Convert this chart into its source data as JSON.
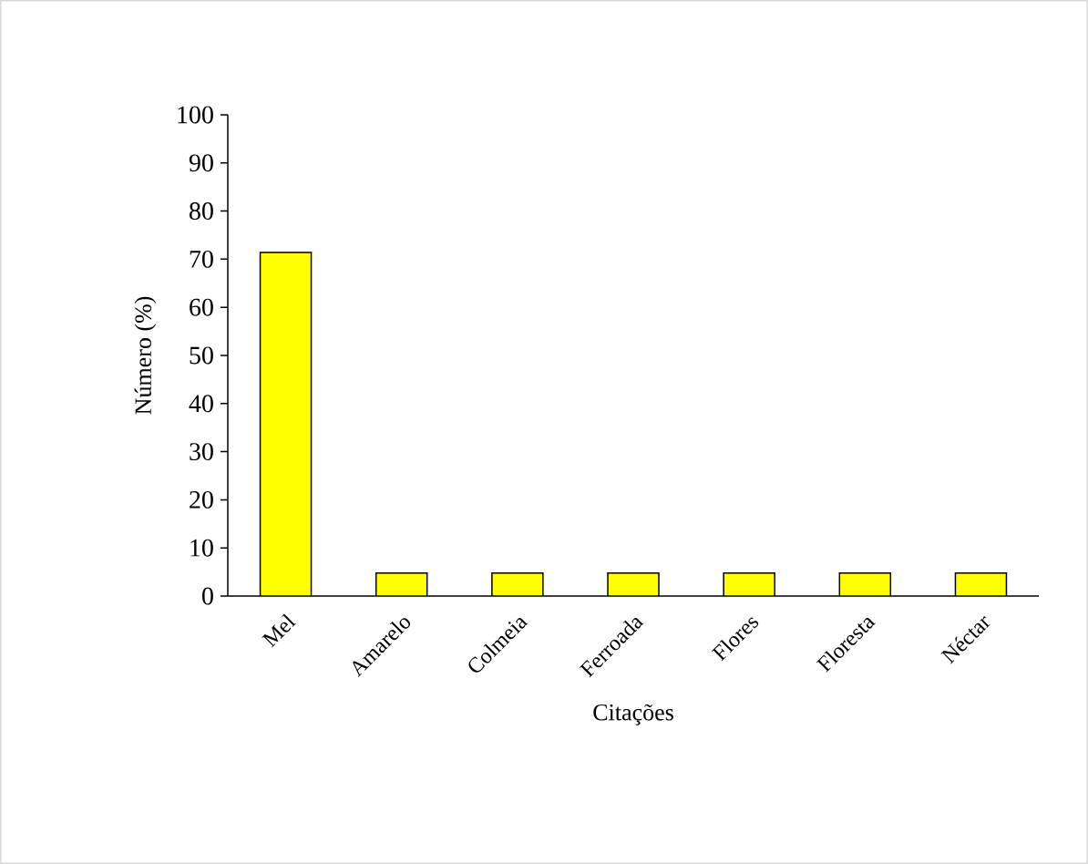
{
  "chart_data": {
    "type": "bar",
    "xlabel": "Citações",
    "ylabel": "Número (%)",
    "categories": [
      "Mel",
      "Amarelo",
      "Colmeia",
      "Ferroada",
      "Flores",
      "Floresta",
      "Néctar"
    ],
    "values": [
      71.4,
      4.8,
      4.8,
      4.8,
      4.8,
      4.8,
      4.8
    ],
    "color": "#ffff00",
    "ylim": [
      0,
      100
    ],
    "yticks": [
      0,
      10,
      20,
      30,
      40,
      50,
      60,
      70,
      80,
      90,
      100
    ]
  }
}
